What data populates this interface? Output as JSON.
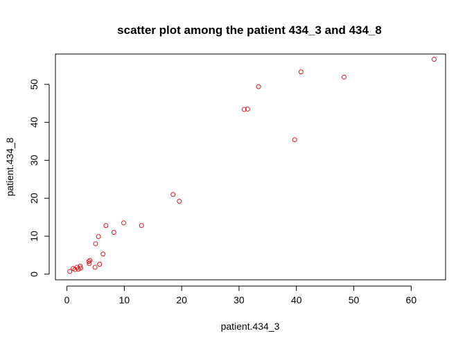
{
  "chart_data": {
    "type": "scatter",
    "title": "scatter plot among the patient 434_3 and 434_8",
    "xlabel": "patient.434_3",
    "ylabel": "patient.434_8",
    "xlim": [
      -2,
      66
    ],
    "ylim": [
      -1.5,
      58
    ],
    "xticks": [
      0,
      10,
      20,
      30,
      40,
      50,
      60
    ],
    "yticks": [
      0,
      10,
      20,
      30,
      40,
      50
    ],
    "grid": false,
    "legend": "none",
    "point_color": "#e0141e",
    "points": [
      {
        "x": 0.5,
        "y": 0.7
      },
      {
        "x": 1.1,
        "y": 1.5
      },
      {
        "x": 1.4,
        "y": 1.2
      },
      {
        "x": 1.8,
        "y": 1.8
      },
      {
        "x": 2.0,
        "y": 1.3
      },
      {
        "x": 2.3,
        "y": 2.1
      },
      {
        "x": 2.4,
        "y": 1.6
      },
      {
        "x": 3.8,
        "y": 3.3
      },
      {
        "x": 4.0,
        "y": 3.6
      },
      {
        "x": 3.9,
        "y": 2.8
      },
      {
        "x": 4.9,
        "y": 1.8
      },
      {
        "x": 5.0,
        "y": 8.0
      },
      {
        "x": 5.5,
        "y": 9.9
      },
      {
        "x": 5.7,
        "y": 2.6
      },
      {
        "x": 6.3,
        "y": 5.3
      },
      {
        "x": 6.8,
        "y": 12.8
      },
      {
        "x": 8.2,
        "y": 11.0
      },
      {
        "x": 9.9,
        "y": 13.5
      },
      {
        "x": 13.0,
        "y": 12.8
      },
      {
        "x": 18.5,
        "y": 21.0
      },
      {
        "x": 19.6,
        "y": 19.2
      },
      {
        "x": 30.9,
        "y": 43.4
      },
      {
        "x": 31.5,
        "y": 43.5
      },
      {
        "x": 33.4,
        "y": 49.4
      },
      {
        "x": 39.7,
        "y": 35.4
      },
      {
        "x": 40.8,
        "y": 53.3
      },
      {
        "x": 48.3,
        "y": 51.9
      },
      {
        "x": 64.0,
        "y": 56.6
      }
    ]
  }
}
